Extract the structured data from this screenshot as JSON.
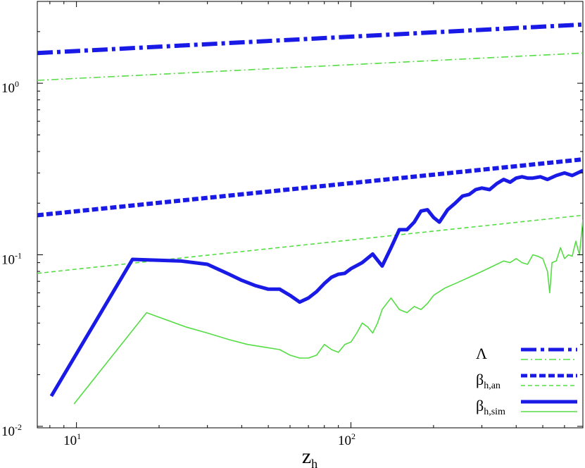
{
  "chart_data": {
    "type": "line",
    "xscale": "log",
    "yscale": "log",
    "xlim": [
      7.2,
      700
    ],
    "ylim": [
      0.0098,
      3.0
    ],
    "xlabel": "z",
    "xlabel_sub": "h",
    "ylabel": "",
    "title": "",
    "legend_position": "bottom-right",
    "grid": false,
    "x_ticks": [
      {
        "value": 10,
        "base": "10",
        "exp": "1"
      },
      {
        "value": 100,
        "base": "10",
        "exp": "2"
      }
    ],
    "y_ticks": [
      {
        "value": 0.01,
        "base": "10",
        "exp": "-2"
      },
      {
        "value": 0.1,
        "base": "10",
        "exp": "-1"
      },
      {
        "value": 1,
        "base": "10",
        "exp": "0"
      }
    ],
    "series": [
      {
        "name": "Λ",
        "sub": "",
        "color": "#1a1ae6",
        "width": 6,
        "dash": "22 6 5 6",
        "x": [
          7.2,
          700
        ],
        "y": [
          1.5,
          2.2
        ]
      },
      {
        "name": "Λ",
        "sub": "",
        "color": "#55dd44",
        "width": 1.6,
        "dash": "10 4 2 4",
        "x": [
          7.2,
          700
        ],
        "y": [
          1.04,
          1.5
        ]
      },
      {
        "name": "β",
        "sub": "h,an",
        "color": "#1a1ae6",
        "width": 6,
        "dash": "9 4",
        "x": [
          7.2,
          700
        ],
        "y": [
          0.17,
          0.36
        ]
      },
      {
        "name": "β",
        "sub": "h,an",
        "color": "#55dd44",
        "width": 1.6,
        "dash": "6 4",
        "x": [
          7.2,
          700
        ],
        "y": [
          0.078,
          0.17
        ]
      },
      {
        "name": "β",
        "sub": "h,sim",
        "color": "#1a1ae6",
        "width": 5,
        "dash": "",
        "x": [
          8.1,
          16,
          24,
          30,
          36,
          40,
          45,
          50,
          55,
          60,
          65,
          70,
          75,
          80,
          85,
          90,
          95,
          100,
          110,
          120,
          125,
          130,
          140,
          150,
          160,
          170,
          180,
          190,
          200,
          210,
          225,
          240,
          255,
          270,
          285,
          300,
          320,
          340,
          360,
          380,
          400,
          420,
          440,
          460,
          490,
          520,
          560,
          600,
          640,
          700
        ],
        "y": [
          0.015,
          0.094,
          0.092,
          0.088,
          0.077,
          0.071,
          0.066,
          0.063,
          0.063,
          0.058,
          0.053,
          0.056,
          0.061,
          0.068,
          0.074,
          0.077,
          0.078,
          0.083,
          0.09,
          0.101,
          0.093,
          0.086,
          0.11,
          0.14,
          0.14,
          0.155,
          0.18,
          0.183,
          0.165,
          0.155,
          0.183,
          0.2,
          0.22,
          0.225,
          0.24,
          0.245,
          0.24,
          0.26,
          0.275,
          0.265,
          0.28,
          0.285,
          0.28,
          0.28,
          0.285,
          0.275,
          0.29,
          0.3,
          0.29,
          0.31
        ]
      },
      {
        "name": "β",
        "sub": "h,sim",
        "color": "#55dd44",
        "width": 1.6,
        "dash": "",
        "x": [
          9.8,
          18,
          25,
          30,
          36,
          42,
          48,
          55,
          60,
          65,
          70,
          75,
          80,
          85,
          90,
          95,
          100,
          105,
          110,
          115,
          120,
          125,
          130,
          135,
          140,
          150,
          160,
          170,
          180,
          190,
          200,
          220,
          240,
          260,
          280,
          300,
          320,
          340,
          360,
          380,
          400,
          420,
          440,
          460,
          480,
          500,
          520,
          530,
          540,
          560,
          580,
          600,
          620,
          640,
          660,
          680,
          700
        ],
        "y": [
          0.0135,
          0.046,
          0.038,
          0.035,
          0.032,
          0.03,
          0.029,
          0.028,
          0.026,
          0.025,
          0.025,
          0.026,
          0.03,
          0.028,
          0.027,
          0.03,
          0.031,
          0.035,
          0.04,
          0.038,
          0.035,
          0.04,
          0.048,
          0.052,
          0.056,
          0.048,
          0.046,
          0.05,
          0.048,
          0.052,
          0.058,
          0.064,
          0.068,
          0.072,
          0.076,
          0.08,
          0.084,
          0.088,
          0.092,
          0.09,
          0.095,
          0.09,
          0.088,
          0.1,
          0.098,
          0.095,
          0.08,
          0.06,
          0.09,
          0.092,
          0.11,
          0.095,
          0.1,
          0.098,
          0.12,
          0.1,
          0.16
        ]
      }
    ]
  }
}
